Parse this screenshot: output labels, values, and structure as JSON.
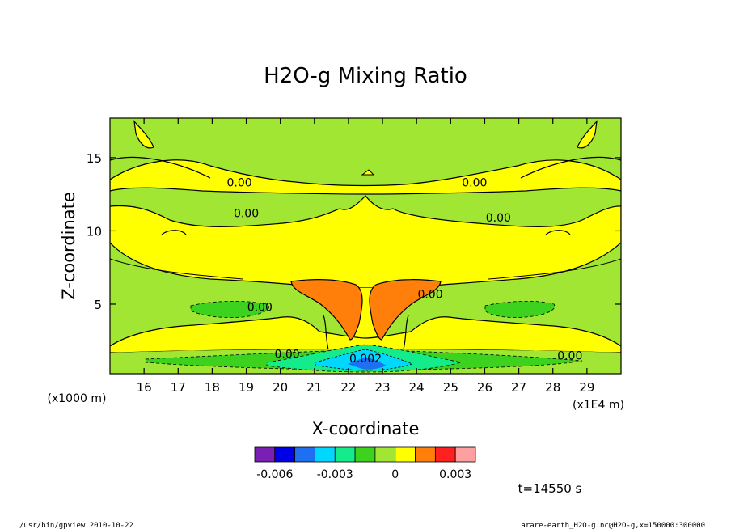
{
  "chart_data": {
    "type": "heatmap",
    "title": "H2O-g Mixing Ratio",
    "xlabel": "X-coordinate",
    "ylabel": "Z-coordinate",
    "x_unit_label": "(x1E4 m)",
    "y_unit_label": "(x1000 m)",
    "x_ticks": [
      "16",
      "17",
      "18",
      "19",
      "20",
      "21",
      "22",
      "23",
      "24",
      "25",
      "26",
      "27",
      "28",
      "29"
    ],
    "x_tick_values": [
      16,
      17,
      18,
      19,
      20,
      21,
      22,
      23,
      24,
      25,
      26,
      27,
      28,
      29
    ],
    "xlim": [
      15,
      30
    ],
    "y_ticks": [
      "5",
      "10",
      "15"
    ],
    "y_tick_values": [
      5,
      10,
      15
    ],
    "ylim": [
      0.25,
      17.7
    ],
    "contour_labels": [
      {
        "text": "0.00",
        "x": 18.8,
        "z": 13.3
      },
      {
        "text": "0.00",
        "x": 25.7,
        "z": 13.3
      },
      {
        "text": "0.00",
        "x": 19.0,
        "z": 11.2
      },
      {
        "text": "0.00",
        "x": 26.4,
        "z": 10.9
      },
      {
        "text": "0.00",
        "x": 24.4,
        "z": 5.7
      },
      {
        "text": "0.00",
        "x": 19.4,
        "z": 4.8
      },
      {
        "text": "0.00",
        "x": 20.2,
        "z": 1.6
      },
      {
        "text": "0.002",
        "x": 22.5,
        "z": 1.3
      },
      {
        "text": "0.00",
        "x": 28.5,
        "z": 1.5
      }
    ],
    "colorbar": {
      "colors": [
        "#7a1fb4",
        "#0000e6",
        "#1f70f0",
        "#00d7ff",
        "#14ec8c",
        "#3cd21e",
        "#a0e632",
        "#ffff00",
        "#ff7f0a",
        "#ff2020",
        "#ffa0a0"
      ],
      "tick_labels": [
        "-0.006",
        "-0.003",
        "0",
        "0.003"
      ],
      "tick_values": [
        -0.006,
        -0.003,
        0,
        0.003
      ],
      "range": [
        -0.007,
        0.004
      ]
    },
    "time_label": "t=14550 s",
    "footer_left": "/usr/bin/gpview  2010-10-22",
    "footer_right": "arare-earth_H2O-g.nc@H2O-g,x=150000:300000"
  }
}
